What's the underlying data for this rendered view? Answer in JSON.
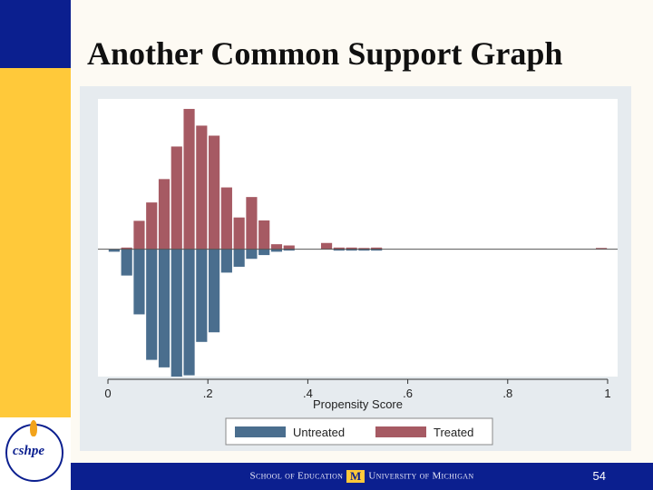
{
  "slide": {
    "title": "Another Common Support Graph",
    "page_number": "54",
    "footer": {
      "part1": "School of Education",
      "part2": "University of Michigan"
    },
    "logo": {
      "name": "cshpe",
      "ring_text": "A Legacy of Leaders Making a Difference 1957 - 2007"
    }
  },
  "colors": {
    "blue_corner": "#0b1f8f",
    "yellow_bar": "#ffc93a",
    "untreated": "#4a6e8e",
    "treated": "#a65a63",
    "plot_bg": "#ffffff",
    "outer_bg": "#e6ebef"
  },
  "chart_data": {
    "type": "bar",
    "xlabel": "Propensity Score",
    "xlim": [
      -0.02,
      1.02
    ],
    "ylim": [
      -0.305,
      0.36
    ],
    "bin_width": 0.025,
    "x_ticks": [
      {
        "value": 0,
        "label": "0"
      },
      {
        "value": 0.2,
        "label": ".2"
      },
      {
        "value": 0.4,
        "label": ".4"
      },
      {
        "value": 0.6,
        "label": ".6"
      },
      {
        "value": 0.8,
        "label": ".8"
      },
      {
        "value": 1,
        "label": "1"
      }
    ],
    "legend": {
      "position": "bottom",
      "entries": [
        "Untreated",
        "Treated"
      ]
    },
    "series": [
      {
        "name": "Untreated",
        "x": [
          0.0125,
          0.0375,
          0.0625,
          0.0875,
          0.1125,
          0.1375,
          0.1625,
          0.1875,
          0.2125,
          0.2375,
          0.2625,
          0.2875,
          0.3125,
          0.3375,
          0.3625,
          0.4625,
          0.4875,
          0.5125,
          0.5375
        ],
        "values": [
          -0.006,
          -0.063,
          -0.156,
          -0.265,
          -0.283,
          -0.305,
          -0.302,
          -0.222,
          -0.199,
          -0.056,
          -0.042,
          -0.023,
          -0.014,
          -0.006,
          -0.003,
          -0.002,
          -0.003,
          -0.002,
          -0.001
        ]
      },
      {
        "name": "Treated",
        "x": [
          0.0125,
          0.0375,
          0.0625,
          0.0875,
          0.1125,
          0.1375,
          0.1625,
          0.1875,
          0.2125,
          0.2375,
          0.2625,
          0.2875,
          0.3125,
          0.3375,
          0.3625,
          0.4375,
          0.4625,
          0.4875,
          0.5125,
          0.5375,
          0.9875
        ],
        "values": [
          0.0,
          0.004,
          0.068,
          0.112,
          0.168,
          0.246,
          0.336,
          0.296,
          0.272,
          0.148,
          0.076,
          0.125,
          0.069,
          0.012,
          0.009,
          0.015,
          0.004,
          0.004,
          0.003,
          0.004,
          0.003
        ]
      }
    ]
  }
}
